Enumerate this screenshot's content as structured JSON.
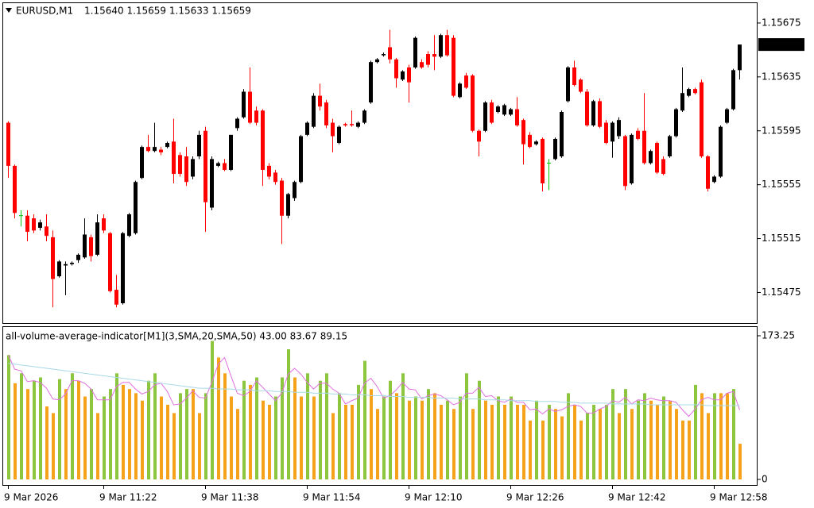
{
  "chart_data": [
    {
      "type": "candlestick",
      "title": "EURUSD,M1",
      "ohlc_label": "1.15640 1.15659 1.15633 1.15659",
      "up_color": "#000000",
      "down_color": "#ff0000",
      "doji_color": "#00c000",
      "current_price": 1.15659,
      "ylim": [
        1.15452,
        1.1569
      ],
      "yticks": [
        1.15675,
        1.15635,
        1.15595,
        1.15555,
        1.15515,
        1.15475
      ],
      "categories": [
        "9 Mar 2026",
        null,
        null,
        null,
        null,
        null,
        null,
        null,
        null,
        null,
        null,
        null,
        null,
        null,
        null,
        "9 Mar 11:22",
        null,
        null,
        null,
        null,
        null,
        null,
        null,
        null,
        null,
        null,
        null,
        null,
        null,
        null,
        null,
        "9 Mar 11:38",
        null,
        null,
        null,
        null,
        null,
        null,
        null,
        null,
        null,
        null,
        null,
        null,
        null,
        null,
        null,
        "9 Mar 11:54",
        null,
        null,
        null,
        null,
        null,
        null,
        null,
        null,
        null,
        null,
        null,
        null,
        null,
        null,
        null,
        "9 Mar 12:10",
        null,
        null,
        null,
        null,
        null,
        null,
        null,
        null,
        null,
        null,
        null,
        null,
        null,
        null,
        null,
        "9 Mar 12:26",
        null,
        null,
        null,
        null,
        null,
        null,
        null,
        null,
        null,
        null,
        null,
        null,
        null,
        null,
        null,
        "9 Mar 12:42",
        null,
        null,
        null,
        null,
        null,
        null,
        null,
        null,
        null,
        null,
        null,
        null,
        null,
        null,
        null,
        "9 Mar 12:58",
        null,
        null,
        null,
        null
      ],
      "open": [
        1.15601,
        1.15569,
        1.15532,
        1.15532,
        1.1553,
        1.15523,
        1.15524,
        1.15516,
        1.15487,
        1.15495,
        1.15496,
        1.15499,
        1.15501,
        1.15516,
        1.15503,
        1.1553,
        1.15519,
        1.15477,
        1.15467,
        1.15517,
        1.15519,
        1.1556,
        1.15583,
        1.1558,
        1.15581,
        1.15583,
        1.15587,
        1.15577,
        1.15576,
        1.15561,
        1.15576,
        1.15595,
        1.15538,
        1.15569,
        1.15571,
        1.15566,
        1.15597,
        1.15605,
        1.15624,
        1.1561,
        1.1561,
        1.15569,
        1.15564,
        1.15558,
        1.15532,
        1.15545,
        1.15557,
        1.15592,
        1.15598,
        1.15621,
        1.15616,
        1.15601,
        1.15586,
        1.156,
        1.156,
        1.15598,
        1.15601,
        1.15616,
        1.15646,
        1.15651,
        1.15657,
        1.15648,
        1.15633,
        1.15642,
        1.15642,
        1.15646,
        1.15652,
        1.15652,
        1.1565,
        1.15666,
        1.15664,
        1.1562,
        1.15636,
        1.15636,
        1.15595,
        1.15595,
        1.15616,
        1.15609,
        1.15607,
        1.15607,
        1.15611,
        1.15603,
        1.15592,
        1.15585,
        1.15589,
        1.15571,
        1.15574,
        1.15576,
        1.15617,
        1.15642,
        1.15633,
        1.15624,
        1.15599,
        1.15617,
        1.15601,
        1.15587,
        1.15591,
        1.15591,
        1.15556,
        1.15595,
        1.15595,
        1.15571,
        1.15586,
        1.15574,
        1.15576,
        1.15591,
        1.1561,
        1.15621,
        1.15626,
        1.15631,
        1.15576,
        1.15557,
        1.15561,
        1.15601,
        1.15611,
        1.1564
      ],
      "high": [
        1.15602,
        1.1557,
        1.15536,
        1.15536,
        1.15533,
        1.15529,
        1.15533,
        1.15521,
        1.15499,
        1.15498,
        1.15498,
        1.15504,
        1.1553,
        1.15518,
        1.15533,
        1.15533,
        1.1552,
        1.15488,
        1.1552,
        1.15534,
        1.15558,
        1.15584,
        1.15592,
        1.15601,
        1.15583,
        1.15587,
        1.15604,
        1.15579,
        1.15583,
        1.15576,
        1.15595,
        1.15598,
        1.15576,
        1.15572,
        1.15574,
        1.15592,
        1.15605,
        1.15626,
        1.15642,
        1.15613,
        1.15611,
        1.15571,
        1.15566,
        1.1556,
        1.15549,
        1.15558,
        1.15592,
        1.15602,
        1.15623,
        1.1563,
        1.15618,
        1.15604,
        1.15599,
        1.15601,
        1.1561,
        1.15602,
        1.15611,
        1.15647,
        1.15649,
        1.15653,
        1.1567,
        1.15649,
        1.1564,
        1.15644,
        1.15665,
        1.15648,
        1.15654,
        1.15666,
        1.15667,
        1.1567,
        1.15666,
        1.15631,
        1.15638,
        1.15637,
        1.15596,
        1.15617,
        1.15618,
        1.15614,
        1.15615,
        1.15612,
        1.1562,
        1.15604,
        1.15594,
        1.15588,
        1.1559,
        1.15574,
        1.1559,
        1.1561,
        1.15643,
        1.15647,
        1.15634,
        1.15626,
        1.15618,
        1.15619,
        1.15603,
        1.15602,
        1.15605,
        1.15592,
        1.15593,
        1.15597,
        1.15623,
        1.15581,
        1.15587,
        1.15576,
        1.15592,
        1.15612,
        1.15642,
        1.15627,
        1.15627,
        1.15633,
        1.15577,
        1.15562,
        1.15599,
        1.15612,
        1.15641,
        1.15659
      ],
      "low": [
        1.1556,
        1.1553,
        1.15524,
        1.15513,
        1.15519,
        1.15521,
        1.15513,
        1.15464,
        1.15486,
        1.15473,
        1.15495,
        1.15497,
        1.155,
        1.15498,
        1.15502,
        1.15519,
        1.15475,
        1.15464,
        1.15466,
        1.15516,
        1.15518,
        1.15559,
        1.15579,
        1.15579,
        1.15577,
        1.15582,
        1.15556,
        1.15561,
        1.15554,
        1.15559,
        1.15574,
        1.1552,
        1.15536,
        1.15568,
        1.15565,
        1.15565,
        1.15595,
        1.15604,
        1.156,
        1.15599,
        1.15554,
        1.15559,
        1.15555,
        1.15511,
        1.1553,
        1.15543,
        1.15556,
        1.15591,
        1.15597,
        1.1561,
        1.15597,
        1.15579,
        1.15585,
        1.15598,
        1.15598,
        1.15597,
        1.156,
        1.15615,
        1.15645,
        1.1565,
        1.15645,
        1.15627,
        1.15632,
        1.15616,
        1.15641,
        1.15641,
        1.15642,
        1.1564,
        1.15649,
        1.1565,
        1.1562,
        1.15619,
        1.15626,
        1.15594,
        1.15576,
        1.15594,
        1.156,
        1.15608,
        1.15606,
        1.15606,
        1.15598,
        1.1557,
        1.15582,
        1.15584,
        1.1555,
        1.15551,
        1.15573,
        1.15575,
        1.15616,
        1.15628,
        1.15623,
        1.15598,
        1.15598,
        1.15597,
        1.15585,
        1.15575,
        1.15589,
        1.15551,
        1.15555,
        1.15588,
        1.1557,
        1.1557,
        1.15563,
        1.15562,
        1.15575,
        1.1559,
        1.15609,
        1.1562,
        1.15622,
        1.15575,
        1.1555,
        1.15556,
        1.1556,
        1.156,
        1.1561,
        1.15633
      ],
      "close": [
        1.15569,
        1.15534,
        1.15532,
        1.1552,
        1.15521,
        1.15527,
        1.15517,
        1.15485,
        1.15498,
        1.15496,
        1.15497,
        1.15503,
        1.15518,
        1.15502,
        1.15527,
        1.15521,
        1.15476,
        1.15466,
        1.15519,
        1.15533,
        1.15557,
        1.15583,
        1.1558,
        1.15583,
        1.15579,
        1.15586,
        1.15563,
        1.15563,
        1.15557,
        1.15574,
        1.15592,
        1.15542,
        1.15574,
        1.15571,
        1.15566,
        1.15592,
        1.15604,
        1.15624,
        1.15601,
        1.15601,
        1.15566,
        1.15561,
        1.15557,
        1.15532,
        1.15548,
        1.15557,
        1.15591,
        1.15601,
        1.15621,
        1.15613,
        1.15599,
        1.15591,
        1.15598,
        1.15599,
        1.15599,
        1.15601,
        1.1561,
        1.15646,
        1.15648,
        1.15652,
        1.15648,
        1.15634,
        1.15639,
        1.15631,
        1.15664,
        1.15642,
        1.15644,
        1.1565,
        1.15666,
        1.15651,
        1.15621,
        1.1563,
        1.15627,
        1.15595,
        1.15587,
        1.15616,
        1.15601,
        1.15613,
        1.15614,
        1.15611,
        1.15599,
        1.15585,
        1.15583,
        1.15587,
        1.15556,
        1.15571,
        1.15589,
        1.15609,
        1.15642,
        1.15629,
        1.15624,
        1.15599,
        1.15617,
        1.15598,
        1.15586,
        1.15601,
        1.15603,
        1.15554,
        1.15592,
        1.15589,
        1.15571,
        1.1558,
        1.15564,
        1.15563,
        1.15591,
        1.15611,
        1.15623,
        1.15626,
        1.15623,
        1.15576,
        1.15552,
        1.15561,
        1.15598,
        1.15611,
        1.1564,
        1.15659
      ]
    },
    {
      "type": "bar",
      "title": "all-volume-average-indicator[M1](3,SMA,20,SMA,50) 43.00 83.67 89.15",
      "up_color": "#8cc63f",
      "down_color": "#f7a21b",
      "ylim": [
        0,
        173.25
      ],
      "yticks": [
        173.25,
        0
      ],
      "values": [
        150,
        116,
        128,
        109,
        119,
        123,
        88,
        80,
        121,
        109,
        128,
        119,
        100,
        109,
        80,
        100,
        109,
        128,
        114,
        109,
        104,
        95,
        119,
        128,
        100,
        90,
        80,
        104,
        109,
        109,
        80,
        104,
        167,
        147,
        128,
        100,
        85,
        119,
        114,
        123,
        95,
        90,
        100,
        123,
        157,
        123,
        100,
        128,
        100,
        119,
        128,
        80,
        104,
        90,
        90,
        114,
        143,
        109,
        85,
        100,
        119,
        104,
        128,
        95,
        100,
        95,
        109,
        104,
        90,
        95,
        85,
        100,
        128,
        85,
        119,
        95,
        90,
        100,
        90,
        100,
        90,
        90,
        71,
        95,
        71,
        90,
        85,
        76,
        104,
        90,
        71,
        80,
        90,
        85,
        90,
        109,
        80,
        109,
        85,
        95,
        104,
        95,
        90,
        100,
        95,
        85,
        71,
        71,
        114,
        104,
        80,
        104,
        104,
        104,
        109,
        43
      ],
      "lines": [
        {
          "color": "#e070e0",
          "values": [
            150,
            133,
            131,
            118,
            119,
            117,
            110,
            97,
            96,
            103,
            119,
            119,
            116,
            109,
            96,
            96,
            96,
            112,
            117,
            117,
            109,
            103,
            106,
            114,
            116,
            106,
            90,
            91,
            98,
            107,
            99,
            98,
            117,
            139,
            147,
            125,
            104,
            101,
            106,
            119,
            111,
            103,
            95,
            104,
            127,
            134,
            127,
            117,
            109,
            116,
            116,
            109,
            104,
            91,
            95,
            98,
            116,
            122,
            112,
            98,
            101,
            108,
            117,
            109,
            108,
            97,
            101,
            103,
            101,
            96,
            90,
            93,
            104,
            104,
            111,
            100,
            101,
            95,
            93,
            97,
            93,
            93,
            84,
            85,
            79,
            85,
            82,
            84,
            88,
            90,
            88,
            80,
            80,
            85,
            88,
            95,
            93,
            99,
            91,
            96,
            95,
            98,
            96,
            95,
            95,
            93,
            84,
            76,
            85,
            96,
            99,
            96,
            96,
            104,
            106,
            83.67
          ]
        },
        {
          "color": "#a8d8e8",
          "values": [
            140,
            139,
            138,
            137,
            136,
            135,
            134,
            133,
            132,
            131,
            130,
            129,
            128,
            127,
            126,
            125,
            124,
            123,
            122,
            121,
            120,
            119,
            118,
            117,
            116,
            115,
            114,
            113,
            112,
            111,
            110,
            110,
            110,
            109,
            109,
            109,
            108,
            108,
            108,
            107,
            107,
            107,
            106,
            106,
            106,
            105,
            105,
            105,
            104,
            104,
            104,
            103,
            103,
            103,
            102,
            102,
            102,
            101,
            101,
            101,
            100,
            100,
            100,
            99,
            99,
            99,
            99,
            98,
            98,
            98,
            98,
            97,
            97,
            97,
            97,
            96,
            96,
            96,
            96,
            95,
            95,
            95,
            95,
            94,
            94,
            94,
            94,
            93,
            93,
            93,
            92,
            92,
            92,
            92,
            92,
            91,
            91,
            91,
            91,
            91,
            91,
            90,
            90,
            90,
            90,
            90,
            90,
            90,
            90,
            90,
            89,
            89,
            89,
            89,
            89,
            89.15
          ]
        }
      ]
    }
  ]
}
